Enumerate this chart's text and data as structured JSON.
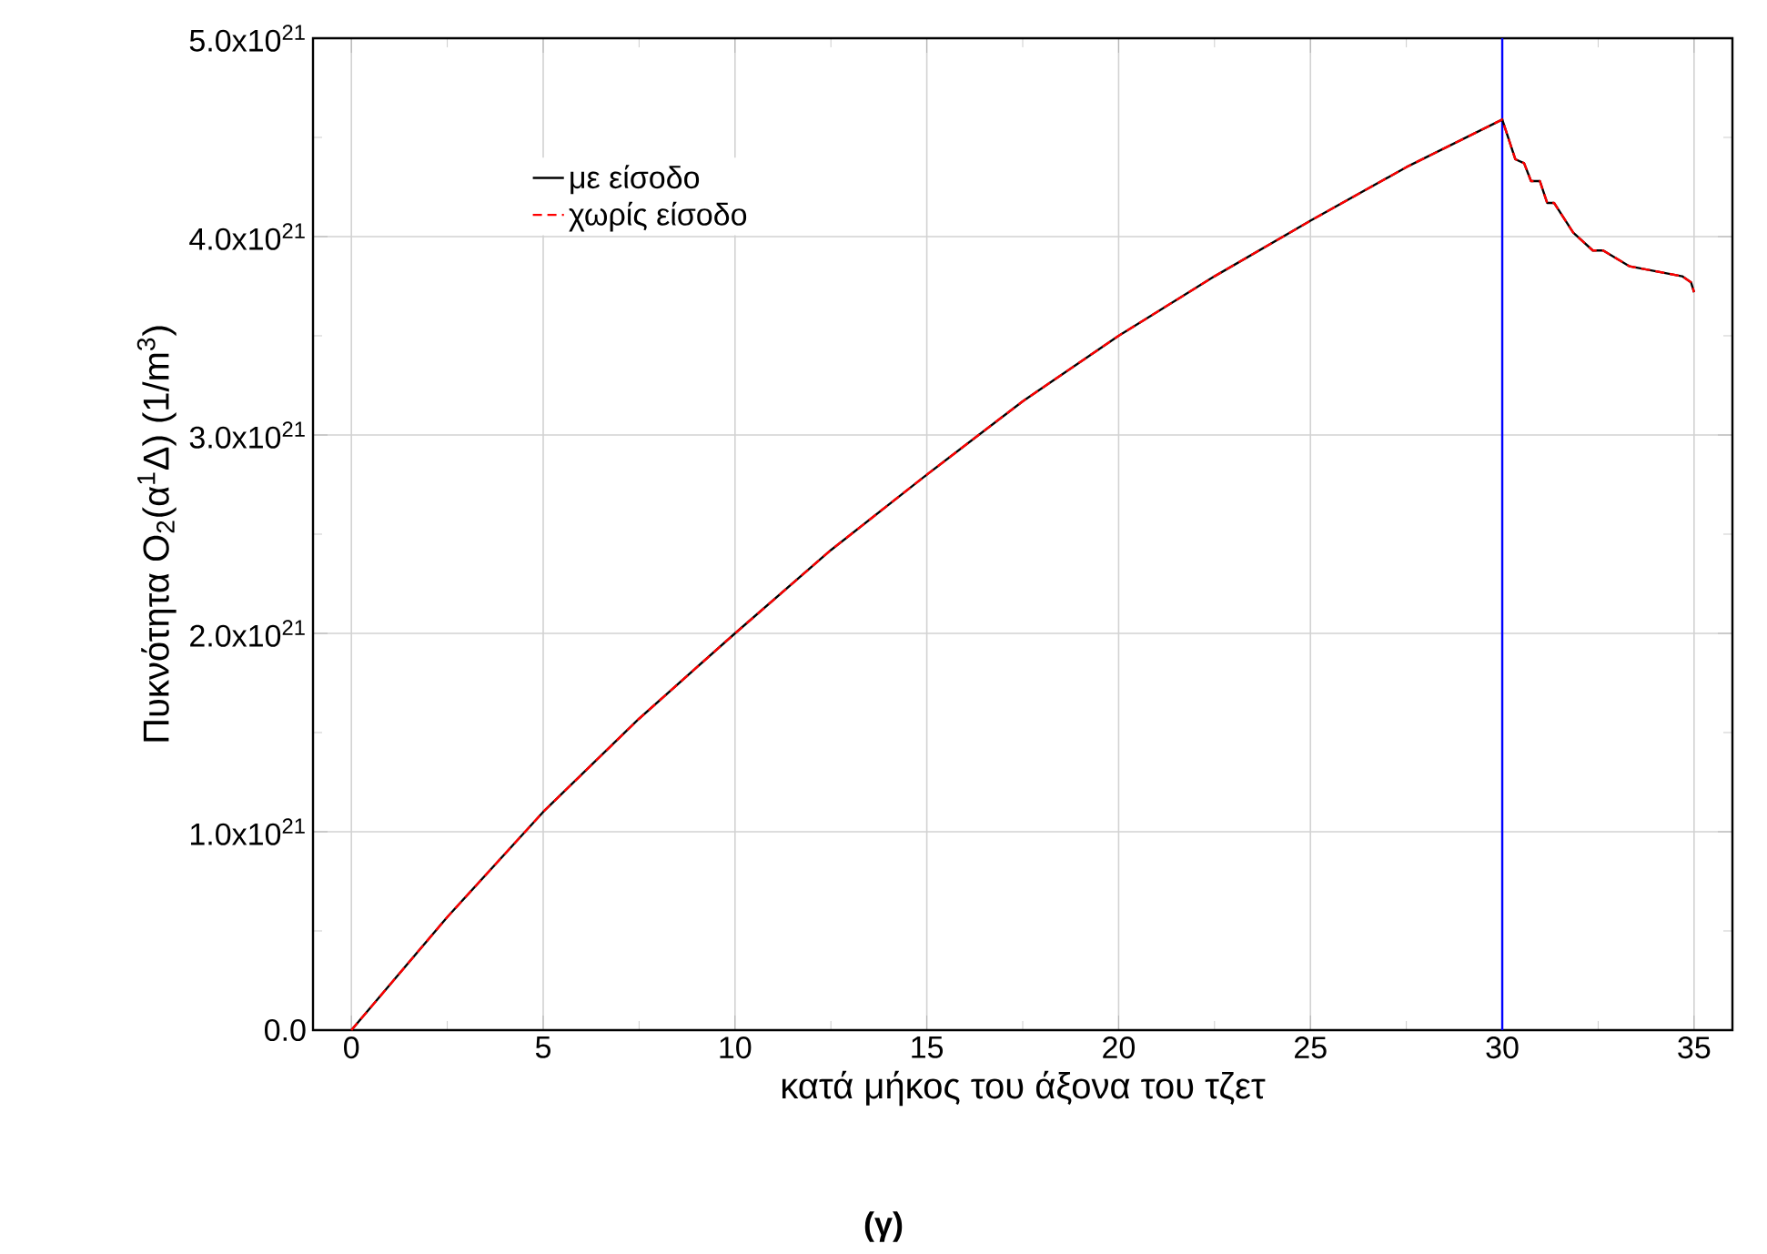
{
  "chart_data": {
    "type": "line",
    "xlabel": "κατά μήκος του άξονα του τζετ",
    "ylabel": "Πυκνότητα O$_{2}$(α$^{1}$Δ) (1/m$^{3}$)",
    "annotations": [
      "**(γ)**"
    ],
    "x": [
      0,
      2.5,
      5,
      7.5,
      10,
      12.5,
      15,
      17.5,
      20,
      22.5,
      25,
      27.5,
      30,
      30.34,
      30.57,
      30.75,
      30.98,
      31.17,
      31.35,
      31.85,
      32.36,
      32.63,
      33.32,
      34.69,
      34.92,
      35
    ],
    "series": [
      {
        "name": "με είσοδο",
        "color": "#000000",
        "line_style": "solid",
        "values": [
          0,
          5.7e+20,
          1.1e+21,
          1.57e+21,
          2e+21,
          2.42e+21,
          2.8e+21,
          3.17e+21,
          3.5e+21,
          3.8e+21,
          4.08e+21,
          4.35e+21,
          4.59e+21,
          4.39e+21,
          4.37e+21,
          4.28e+21,
          4.28e+21,
          4.17e+21,
          4.17e+21,
          4.02e+21,
          3.93e+21,
          3.93e+21,
          3.85e+21,
          3.8e+21,
          3.77e+21,
          3.72e+21
        ]
      },
      {
        "name": "χωρίς είσοδο",
        "color": "#ff0000",
        "line_style": "dashed",
        "values": [
          0,
          5.7e+20,
          1.1e+21,
          1.57e+21,
          2e+21,
          2.42e+21,
          2.8e+21,
          3.17e+21,
          3.5e+21,
          3.8e+21,
          4.08e+21,
          4.35e+21,
          4.59e+21,
          4.39e+21,
          4.37e+21,
          4.28e+21,
          4.28e+21,
          4.17e+21,
          4.17e+21,
          4.02e+21,
          3.93e+21,
          3.93e+21,
          3.85e+21,
          3.8e+21,
          3.77e+21,
          3.72e+21
        ]
      }
    ],
    "xlim": [
      -1,
      36
    ],
    "xticks": [
      0,
      5,
      10,
      15,
      20,
      25,
      30,
      35
    ],
    "ylim": [
      0,
      5e+21
    ],
    "yticks": [
      {
        "value": 0,
        "label": "0.0"
      },
      {
        "value": 1e+21,
        "label": "1.0x10$^{21}$"
      },
      {
        "value": 2e+21,
        "label": "2.0x10$^{21}$"
      },
      {
        "value": 3e+21,
        "label": "3.0x10$^{21}$"
      },
      {
        "value": 4e+21,
        "label": "4.0x10$^{21}$"
      },
      {
        "value": 5e+21,
        "label": "5.0x10$^{21}$"
      }
    ],
    "ref_lines": [
      {
        "axis": "x",
        "value": 30,
        "color": "#0000ff"
      }
    ],
    "grid": true,
    "legend": "top left",
    "marker": "none"
  }
}
